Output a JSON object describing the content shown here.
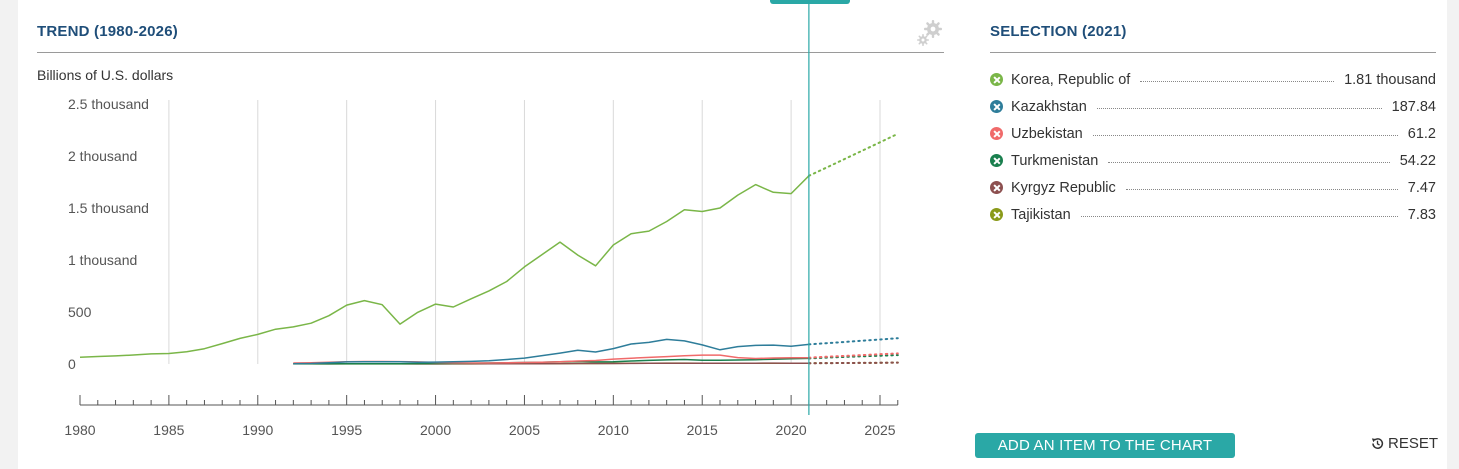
{
  "trend_title": "TREND (1980-2026)",
  "selection_title": "SELECTION (2021)",
  "unit_label": "Billions of U.S. dollars",
  "add_button_label": "ADD AN ITEM TO THE CHART",
  "reset_label": "RESET",
  "icons": {
    "settings": "gear-icon",
    "reset": "reset-icon",
    "legend_toggle": "close-icon"
  },
  "legend": [
    {
      "name": "Korea, Republic of",
      "value": "1.81 thousand",
      "color": "#7ab648"
    },
    {
      "name": "Kazakhstan",
      "value": "187.84",
      "color": "#2e7d9a"
    },
    {
      "name": "Uzbekistan",
      "value": "61.2",
      "color": "#f06a6a"
    },
    {
      "name": "Turkmenistan",
      "value": "54.22",
      "color": "#1a7f4e"
    },
    {
      "name": "Kyrgyz Republic",
      "value": "7.47",
      "color": "#8c4f4f"
    },
    {
      "name": "Tajikistan",
      "value": "7.83",
      "color": "#8a9a1a"
    }
  ],
  "chart_data": {
    "type": "line",
    "ylabel": "Billions of U.S. dollars",
    "xlim": [
      1980,
      2026
    ],
    "ylim": [
      0,
      2500
    ],
    "y_ticks": [
      {
        "value": 0,
        "label": "0"
      },
      {
        "value": 500,
        "label": "500"
      },
      {
        "value": 1000,
        "label": "1 thousand"
      },
      {
        "value": 1500,
        "label": "1.5 thousand"
      },
      {
        "value": 2000,
        "label": "2 thousand"
      },
      {
        "value": 2500,
        "label": "2.5 thousand"
      }
    ],
    "x_ticks": [
      1980,
      1985,
      1990,
      1995,
      2000,
      2005,
      2010,
      2015,
      2020,
      2025
    ],
    "selected_year": 2021,
    "projection_start": 2021,
    "grid": true,
    "series": [
      {
        "name": "Korea, Republic of",
        "color": "#7ab648",
        "x": [
          1980,
          1981,
          1982,
          1983,
          1984,
          1985,
          1986,
          1987,
          1988,
          1989,
          1990,
          1991,
          1992,
          1993,
          1994,
          1995,
          1996,
          1997,
          1998,
          1999,
          2000,
          2001,
          2002,
          2003,
          2004,
          2005,
          2006,
          2007,
          2008,
          2009,
          2010,
          2011,
          2012,
          2013,
          2014,
          2015,
          2016,
          2017,
          2018,
          2019,
          2020,
          2021,
          2022,
          2023,
          2024,
          2025,
          2026
        ],
        "values": [
          65,
          72,
          78,
          87,
          97,
          101,
          118,
          147,
          196,
          246,
          285,
          335,
          357,
          392,
          464,
          566,
          610,
          570,
          384,
          497,
          576,
          548,
          627,
          703,
          793,
          934,
          1053,
          1172,
          1047,
          944,
          1144,
          1253,
          1278,
          1370,
          1484,
          1466,
          1500,
          1624,
          1725,
          1651,
          1638,
          1810,
          1889,
          1970,
          2051,
          2132,
          2213
        ]
      },
      {
        "name": "Kazakhstan",
        "color": "#2e7d9a",
        "x": [
          1992,
          1993,
          1994,
          1995,
          1996,
          1997,
          1998,
          1999,
          2000,
          2001,
          2002,
          2003,
          2004,
          2005,
          2006,
          2007,
          2008,
          2009,
          2010,
          2011,
          2012,
          2013,
          2014,
          2015,
          2016,
          2017,
          2018,
          2019,
          2020,
          2021,
          2022,
          2023,
          2024,
          2025,
          2026
        ],
        "values": [
          3,
          5,
          12,
          20,
          21,
          22,
          22,
          17,
          18,
          22,
          25,
          31,
          43,
          57,
          81,
          105,
          133,
          115,
          148,
          192,
          208,
          237,
          222,
          184,
          137,
          167,
          179,
          182,
          171,
          188,
          200,
          212,
          224,
          236,
          248
        ]
      },
      {
        "name": "Uzbekistan",
        "color": "#f06a6a",
        "x": [
          1992,
          1993,
          1994,
          1995,
          1996,
          1997,
          1998,
          1999,
          2000,
          2001,
          2002,
          2003,
          2004,
          2005,
          2006,
          2007,
          2008,
          2009,
          2010,
          2011,
          2012,
          2013,
          2014,
          2015,
          2016,
          2017,
          2018,
          2019,
          2020,
          2021,
          2022,
          2023,
          2024,
          2025,
          2026
        ],
        "values": [
          10,
          12,
          16,
          22,
          24,
          24,
          23,
          20,
          14,
          11,
          10,
          10,
          12,
          14,
          17,
          22,
          29,
          34,
          47,
          56,
          63,
          71,
          80,
          86,
          86,
          62,
          53,
          58,
          60,
          61,
          70,
          78,
          86,
          94,
          102
        ]
      },
      {
        "name": "Turkmenistan",
        "color": "#1a7f4e",
        "x": [
          1992,
          1993,
          1994,
          1995,
          1996,
          1997,
          1998,
          1999,
          2000,
          2001,
          2002,
          2003,
          2004,
          2005,
          2006,
          2007,
          2008,
          2009,
          2010,
          2011,
          2012,
          2013,
          2014,
          2015,
          2016,
          2017,
          2018,
          2019,
          2020,
          2021,
          2022,
          2023,
          2024,
          2025,
          2026
        ],
        "values": [
          3,
          3,
          3,
          3,
          3,
          3,
          3,
          4,
          5,
          6,
          7,
          10,
          12,
          14,
          17,
          21,
          25,
          20,
          22,
          29,
          35,
          39,
          43,
          36,
          36,
          38,
          41,
          46,
          50,
          54,
          62,
          68,
          74,
          80,
          86
        ]
      },
      {
        "name": "Kyrgyz Republic",
        "color": "#8c4f4f",
        "x": [
          1992,
          1993,
          1994,
          1995,
          1996,
          1997,
          1998,
          1999,
          2000,
          2001,
          2002,
          2003,
          2004,
          2005,
          2006,
          2007,
          2008,
          2009,
          2010,
          2011,
          2012,
          2013,
          2014,
          2015,
          2016,
          2017,
          2018,
          2019,
          2020,
          2021,
          2022,
          2023,
          2024,
          2025,
          2026
        ],
        "values": [
          2,
          2,
          1,
          2,
          2,
          2,
          2,
          1,
          1,
          2,
          2,
          2,
          2,
          2,
          3,
          4,
          5,
          5,
          5,
          6,
          7,
          7,
          7,
          7,
          7,
          8,
          8,
          9,
          8,
          7,
          9,
          10,
          11,
          12,
          13
        ]
      },
      {
        "name": "Tajikistan",
        "color": "#8a9a1a",
        "x": [
          1992,
          1993,
          1994,
          1995,
          1996,
          1997,
          1998,
          1999,
          2000,
          2001,
          2002,
          2003,
          2004,
          2005,
          2006,
          2007,
          2008,
          2009,
          2010,
          2011,
          2012,
          2013,
          2014,
          2015,
          2016,
          2017,
          2018,
          2019,
          2020,
          2021,
          2022,
          2023,
          2024,
          2025,
          2026
        ],
        "values": [
          1,
          1,
          1,
          1,
          1,
          1,
          1,
          1,
          1,
          1,
          1,
          2,
          2,
          2,
          3,
          4,
          5,
          5,
          6,
          7,
          8,
          9,
          9,
          8,
          7,
          7,
          8,
          8,
          8,
          8,
          9,
          10,
          11,
          12,
          13
        ]
      }
    ]
  }
}
